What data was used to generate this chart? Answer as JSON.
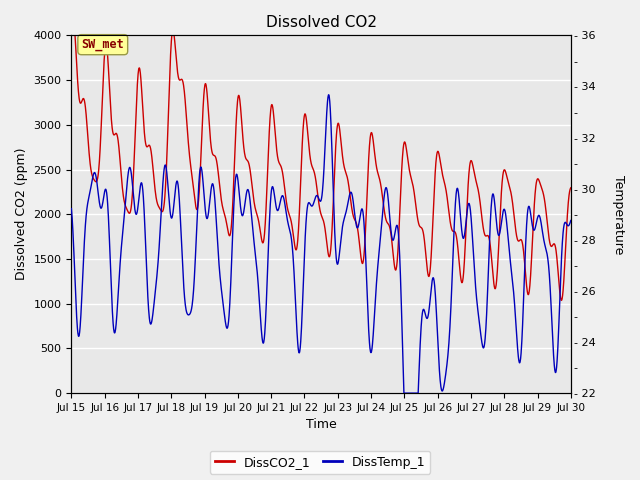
{
  "title": "Dissolved CO2",
  "xlabel": "Time",
  "ylabel_left": "Dissolved CO2 (ppm)",
  "ylabel_right": "Temperature",
  "annotation": "SW_met",
  "plot_bg_color": "#e8e8e8",
  "fig_bg_color": "#f0f0f0",
  "line_color_co2": "#cc0000",
  "line_color_temp": "#0000bb",
  "legend_labels": [
    "DissCO2_1",
    "DissTemp_1"
  ],
  "ylim_left": [
    0,
    4000
  ],
  "ylim_right": [
    22,
    36
  ],
  "yticks_left": [
    0,
    500,
    1000,
    1500,
    2000,
    2500,
    3000,
    3500,
    4000
  ],
  "yticks_right": [
    22,
    23,
    24,
    25,
    26,
    27,
    28,
    29,
    30,
    31,
    32,
    33,
    34,
    35,
    36
  ],
  "x_tick_labels": [
    "Jul 15",
    "Jul 16",
    "Jul 17",
    "Jul 18",
    "Jul 19",
    "Jul 20",
    "Jul 21",
    "Jul 22",
    "Jul 23",
    "Jul 24",
    "Jul 25",
    "Jul 26",
    "Jul 27",
    "Jul 28",
    "Jul 29",
    "Jul 30"
  ],
  "x_tick_positions": [
    0,
    1,
    2,
    3,
    4,
    5,
    6,
    7,
    8,
    9,
    10,
    11,
    12,
    13,
    14,
    15
  ],
  "figsize": [
    6.4,
    4.8
  ],
  "dpi": 100
}
